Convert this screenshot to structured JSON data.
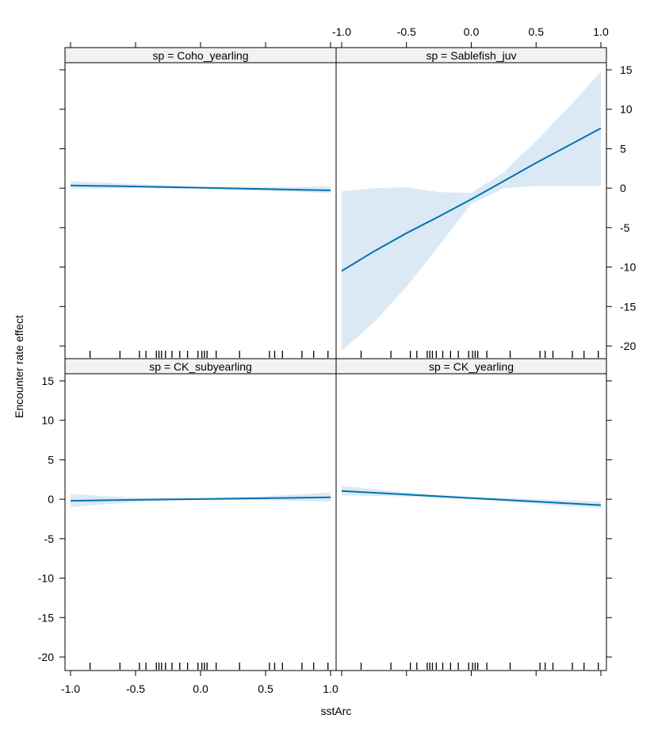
{
  "chart_data": {
    "type": "line",
    "xlabel": "sstArc",
    "ylabel": "Encounter rate effect",
    "xlim": [
      -1.0,
      1.0
    ],
    "ylim": [
      -20,
      15
    ],
    "x_ticks": [
      -1.0,
      -0.5,
      0.0,
      0.5,
      1.0
    ],
    "x_tick_labels": [
      "-1.0",
      "-0.5",
      "0.0",
      "0.5",
      "1.0"
    ],
    "y_ticks": [
      -20,
      -15,
      -10,
      -5,
      0,
      5,
      10,
      15
    ],
    "y_tick_labels": [
      "-20",
      "-15",
      "-10",
      "-5",
      "0",
      "5",
      "10",
      "15"
    ],
    "rug_x": [
      -0.85,
      -0.62,
      -0.47,
      -0.42,
      -0.34,
      -0.32,
      -0.3,
      -0.27,
      -0.22,
      -0.16,
      -0.1,
      -0.02,
      0.01,
      0.03,
      0.05,
      0.12,
      0.3,
      0.53,
      0.57,
      0.63,
      0.78,
      0.87,
      0.98
    ],
    "line_color": "#0072b2",
    "band_color": "#dbe9f4",
    "panels": [
      {
        "label": "sp = Coho_yearling",
        "x": [
          -1.0,
          -0.5,
          0.0,
          0.5,
          1.0
        ],
        "fit": [
          0.35,
          0.22,
          0.05,
          -0.12,
          -0.28
        ],
        "lower": [
          -0.05,
          -0.02,
          -0.05,
          -0.35,
          -0.62
        ],
        "upper": [
          0.9,
          0.52,
          0.18,
          0.12,
          0.22
        ]
      },
      {
        "label": "sp = Sablefish_juv",
        "x": [
          -1.0,
          -0.75,
          -0.5,
          -0.25,
          0.0,
          0.25,
          0.5,
          0.75,
          1.0
        ],
        "fit": [
          -10.5,
          -8.0,
          -5.7,
          -3.6,
          -1.4,
          0.9,
          3.2,
          5.4,
          7.6
        ],
        "lower": [
          -20.6,
          -17.0,
          -12.5,
          -7.3,
          -2.0,
          0.0,
          0.3,
          0.3,
          0.3
        ],
        "upper": [
          -0.4,
          0.0,
          0.1,
          -0.5,
          -0.6,
          2.0,
          6.0,
          10.2,
          14.8
        ]
      },
      {
        "label": "sp = CK_subyearling",
        "x": [
          -1.0,
          -0.5,
          0.0,
          0.5,
          1.0
        ],
        "fit": [
          -0.2,
          -0.08,
          0.02,
          0.12,
          0.25
        ],
        "lower": [
          -1.0,
          -0.35,
          -0.1,
          -0.12,
          -0.3
        ],
        "upper": [
          0.65,
          0.2,
          0.12,
          0.38,
          0.85
        ]
      },
      {
        "label": "sp = CK_yearling",
        "x": [
          -1.0,
          -0.5,
          0.0,
          0.5,
          1.0
        ],
        "fit": [
          1.05,
          0.6,
          0.15,
          -0.3,
          -0.75
        ],
        "lower": [
          0.5,
          0.35,
          0.0,
          -0.6,
          -1.15
        ],
        "upper": [
          1.7,
          0.85,
          0.3,
          0.0,
          -0.3
        ]
      }
    ]
  }
}
